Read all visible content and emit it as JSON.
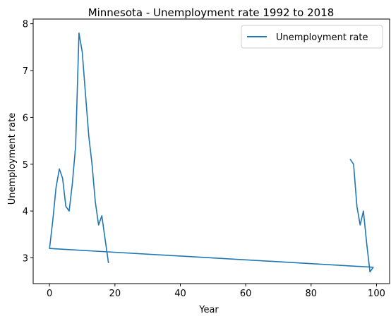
{
  "chart_data": {
    "type": "line",
    "title": "Minnesota - Unemployment rate 1992 to 2018",
    "xlabel": "Year",
    "ylabel": "Unemployment rate",
    "xlim": [
      -5,
      104
    ],
    "ylim": [
      2.45,
      8.1
    ],
    "xticks": [
      0,
      20,
      40,
      60,
      80,
      100
    ],
    "yticks": [
      3,
      4,
      5,
      6,
      7,
      8
    ],
    "legend_position": "upper right",
    "grid": false,
    "series": [
      {
        "name": "Unemployment rate",
        "color": "#1f77b4",
        "x": [
          92,
          93,
          94,
          95,
          96,
          97,
          98,
          99,
          0,
          1,
          2,
          3,
          4,
          5,
          6,
          7,
          8,
          9,
          10,
          11,
          12,
          13,
          14,
          15,
          16,
          17,
          18
        ],
        "y": [
          5.1,
          5.0,
          4.1,
          3.7,
          4.0,
          3.3,
          2.7,
          2.8,
          3.2,
          3.8,
          4.5,
          4.9,
          4.7,
          4.1,
          4.0,
          4.6,
          5.4,
          7.8,
          7.4,
          6.5,
          5.6,
          5.0,
          4.2,
          3.7,
          3.9,
          3.4,
          2.9
        ]
      }
    ]
  }
}
